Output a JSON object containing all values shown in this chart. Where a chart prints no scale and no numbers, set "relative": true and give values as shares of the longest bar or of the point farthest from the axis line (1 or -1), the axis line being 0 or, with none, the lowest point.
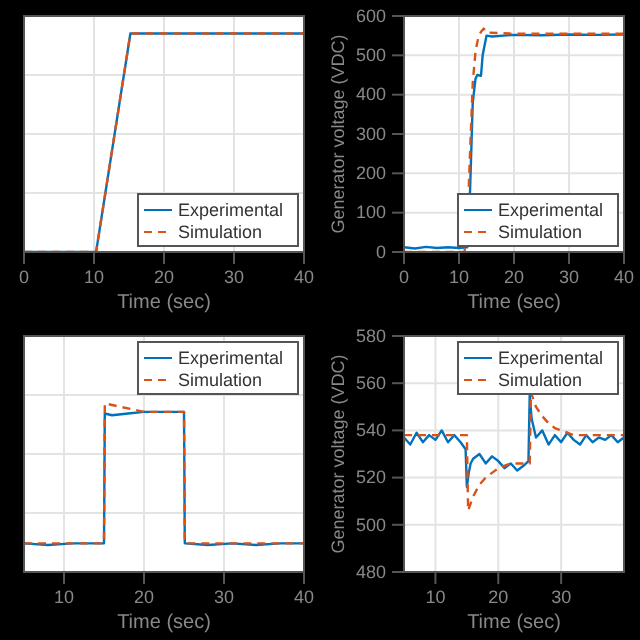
{
  "chart_data": [
    {
      "type": "line",
      "relative": true,
      "xlabel": "Time (sec)",
      "xlim": [
        0,
        40
      ],
      "xticks": [
        0,
        10,
        20,
        30,
        40
      ],
      "grid": true,
      "legend": "bottom right",
      "series": [
        {
          "name": "Experimental",
          "color": "#0072bd",
          "line_style": "solid",
          "x": [
            0,
            10.3,
            15.2,
            40
          ],
          "values": [
            0,
            0,
            1,
            1
          ]
        },
        {
          "name": "Simulation",
          "color": "#d95319",
          "line_style": "dashed",
          "x": [
            0,
            10.3,
            15.2,
            40
          ],
          "values": [
            0,
            0,
            1,
            1
          ]
        }
      ]
    },
    {
      "type": "line",
      "xlabel": "Time (sec)",
      "ylabel": "Generator voltage (VDC)",
      "xlim": [
        0,
        40
      ],
      "xticks": [
        0,
        10,
        20,
        30,
        40
      ],
      "ylim": [
        0,
        600
      ],
      "yticks": [
        0,
        100,
        200,
        300,
        400,
        500,
        600
      ],
      "grid": true,
      "legend": "bottom right",
      "series": [
        {
          "name": "Experimental",
          "color": "#0072bd",
          "line_style": "solid",
          "x": [
            0,
            2,
            4,
            6,
            8,
            10,
            11.5,
            12,
            12.5,
            13,
            13.3,
            14,
            14.3,
            15,
            16,
            20,
            25,
            30,
            35,
            40
          ],
          "values": [
            12,
            9,
            13,
            10,
            12,
            10,
            12,
            150,
            380,
            440,
            450,
            448,
            500,
            550,
            548,
            552,
            551,
            553,
            552,
            553
          ]
        },
        {
          "name": "Simulation",
          "color": "#d95319",
          "line_style": "dashed",
          "x": [
            0,
            11,
            11.5,
            12,
            12.5,
            13,
            13.5,
            14,
            14.5,
            15,
            20,
            40
          ],
          "values": [
            0,
            0,
            60,
            250,
            430,
            510,
            545,
            560,
            568,
            558,
            555,
            555
          ]
        }
      ]
    },
    {
      "type": "line",
      "relative": true,
      "xlabel": "Time (sec)",
      "xlim": [
        5,
        40
      ],
      "xticks": [
        10,
        20,
        30,
        40
      ],
      "grid": true,
      "legend": "top right",
      "series": [
        {
          "name": "Experimental",
          "color": "#0072bd",
          "line_style": "solid",
          "x": [
            5,
            8,
            11,
            14,
            15,
            15.1,
            16,
            18,
            20,
            22,
            24,
            25,
            25.1,
            28,
            31,
            34,
            37,
            40
          ],
          "values": [
            0.17,
            0.16,
            0.17,
            0.17,
            0.17,
            0.94,
            0.93,
            0.94,
            0.95,
            0.95,
            0.95,
            0.95,
            0.17,
            0.16,
            0.17,
            0.16,
            0.17,
            0.17
          ]
        },
        {
          "name": "Simulation",
          "color": "#d95319",
          "line_style": "dashed",
          "x": [
            5,
            15,
            15.1,
            20,
            25,
            25.1,
            40
          ],
          "values": [
            0.17,
            0.17,
            1,
            0.95,
            0.95,
            0.17,
            0.17
          ]
        }
      ]
    },
    {
      "type": "line",
      "xlabel": "Time (sec)",
      "ylabel": "Generator voltage (VDC)",
      "xlim": [
        5,
        40
      ],
      "xticks": [
        10,
        20,
        30
      ],
      "ylim": [
        480,
        580
      ],
      "yticks": [
        480,
        500,
        520,
        540,
        560,
        580
      ],
      "grid": true,
      "legend": "top right",
      "series": [
        {
          "name": "Experimental",
          "color": "#0072bd",
          "line_style": "solid",
          "x": [
            5,
            6,
            7,
            8,
            9,
            10,
            11,
            12,
            13,
            14,
            14.8,
            15,
            15.3,
            15.6,
            16,
            17,
            18,
            19,
            20,
            21,
            22,
            23,
            24,
            24.8,
            25,
            25.3,
            26,
            27,
            28,
            29,
            30,
            31,
            32,
            33,
            34,
            35,
            36,
            37,
            38,
            39,
            40
          ],
          "values": [
            537,
            534,
            539,
            535,
            538,
            536,
            540,
            535,
            538,
            535,
            532,
            516,
            522,
            526,
            528,
            530,
            526,
            529,
            527,
            524,
            526,
            523,
            525,
            527,
            555,
            545,
            537,
            540,
            534,
            538,
            535,
            539,
            536,
            534,
            538,
            535,
            537,
            536,
            538,
            535,
            537
          ]
        },
        {
          "name": "Simulation",
          "color": "#d95319",
          "line_style": "dashed",
          "x": [
            5,
            15,
            15.2,
            16,
            17,
            18,
            19,
            20,
            22,
            25,
            25.2,
            26,
            27,
            28,
            29,
            30,
            32,
            35,
            40
          ],
          "values": [
            538,
            538,
            506,
            512,
            517,
            520,
            522,
            524,
            526,
            526,
            556,
            550,
            546,
            543,
            541,
            540,
            538,
            538,
            538
          ]
        }
      ]
    }
  ]
}
